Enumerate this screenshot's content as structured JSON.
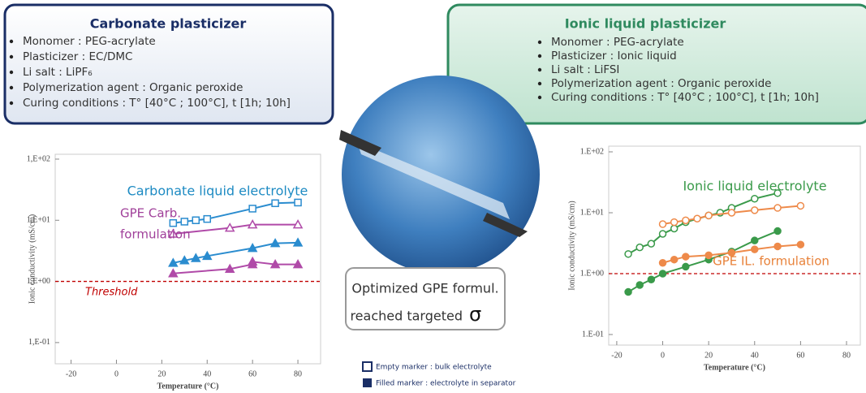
{
  "left_box": {
    "title": "Carbonate plasticizer",
    "bullets": [
      "Monomer : PEG-acrylate",
      "Plasticizer : EC/DMC",
      "Li salt : LiPF₆",
      "Polymerization agent : Organic peroxide",
      "Curing conditions : T° [40°C ; 100°C], t [1h; 10h]"
    ]
  },
  "right_box": {
    "title": "Ionic liquid plasticizer",
    "bullets": [
      "Monomer : PEG-acrylate",
      "Plasticizer : Ionic liquid",
      "Li salt : LiFSI",
      "Polymerization agent : Organic peroxide",
      "Curing conditions : T° [40°C ; 100°C], t [1h; 10h]"
    ]
  },
  "callout": {
    "lines": [
      "Optimized GPE formul.",
      "reached targeted",
      "σ"
    ]
  },
  "legend": {
    "empty": "Empty marker : bulk electrolyte",
    "filled": "Filled marker : electrolyte in separator"
  },
  "chart_data": [
    {
      "type": "line",
      "log_y": true,
      "xlabel": "Temperature (°C)",
      "ylabel": "Ionic conductivity (mS/cm)",
      "xlim": [
        -27,
        90
      ],
      "xticks": [
        -20,
        0,
        20,
        40,
        60,
        80
      ],
      "ylim": [
        0.045,
        120
      ],
      "yticks": [
        {
          "value": 0.1,
          "label": "1,E-01"
        },
        {
          "value": 1,
          "label": "1,E+00"
        },
        {
          "value": 10,
          "label": "1,E+01"
        },
        {
          "value": 100,
          "label": "1,E+02"
        }
      ],
      "threshold": {
        "value": 1,
        "label": "Threshold",
        "color": "#c00000"
      },
      "annotations": [
        {
          "text": "Carbonate liquid electrolyte",
          "color": "#1e8bc3"
        },
        {
          "text": "GPE  Carb.",
          "color": "#a0409a"
        },
        {
          "text": "formulation",
          "color": "#a0409a"
        }
      ],
      "series": [
        {
          "color": "#2a8ccf",
          "marker": "square",
          "filled": false,
          "x": [
            25,
            30,
            35,
            40,
            60,
            70,
            80
          ],
          "values": [
            9,
            9.5,
            10,
            10.5,
            15.5,
            19,
            19.5
          ]
        },
        {
          "color": "#b04aa8",
          "marker": "triangle",
          "filled": false,
          "x": [
            25,
            50,
            60,
            80
          ],
          "values": [
            6,
            7.5,
            8.5,
            8.5
          ]
        },
        {
          "color": "#2a8ccf",
          "marker": "triangle",
          "filled": true,
          "x": [
            25,
            30,
            35,
            40,
            60,
            70,
            80
          ],
          "values": [
            2,
            2.2,
            2.4,
            2.6,
            3.5,
            4.2,
            4.3
          ]
        },
        {
          "color": "#b04aa8",
          "marker": "triangle",
          "filled": true,
          "x": [
            25,
            50,
            60,
            60,
            70,
            80
          ],
          "values": [
            1.35,
            1.6,
            1.9,
            2.1,
            1.9,
            1.9
          ]
        }
      ]
    },
    {
      "type": "line",
      "log_y": true,
      "xlabel": "Temperature (°C)",
      "ylabel": "Ionic conductivity (mS/cm)",
      "xlim": [
        -23.5,
        86
      ],
      "xticks": [
        -20,
        0,
        20,
        40,
        60,
        80
      ],
      "ylim": [
        0.067,
        124
      ],
      "yticks": [
        {
          "value": 0.1,
          "label": "1.E-01"
        },
        {
          "value": 1,
          "label": "1.E+00"
        },
        {
          "value": 10,
          "label": "1.E+01"
        },
        {
          "value": 100,
          "label": "1.E+02"
        }
      ],
      "threshold": {
        "value": 1,
        "color": "#c00000"
      },
      "annotations": [
        {
          "text": "Ionic liquid electrolyte",
          "color": "#3a9a4a"
        },
        {
          "text": "GPE IL. formulation",
          "color": "#e8823a"
        }
      ],
      "series": [
        {
          "color": "#3a9a4a",
          "marker": "circle",
          "filled": false,
          "x": [
            -15,
            -10,
            -5,
            0,
            5,
            10,
            20,
            25,
            30,
            40,
            50
          ],
          "values": [
            2.1,
            2.7,
            3.1,
            4.5,
            5.5,
            7,
            9,
            10,
            12,
            17,
            21
          ]
        },
        {
          "color": "#ee8a4a",
          "marker": "circle",
          "filled": false,
          "x": [
            0,
            5,
            10,
            15,
            20,
            30,
            40,
            50,
            60
          ],
          "values": [
            6.5,
            7,
            7.5,
            8,
            9,
            10,
            11,
            12,
            13
          ]
        },
        {
          "color": "#3a9a4a",
          "marker": "circle",
          "filled": true,
          "x": [
            -15,
            -10,
            -5,
            0,
            10,
            20,
            30,
            40,
            50
          ],
          "values": [
            0.5,
            0.65,
            0.8,
            1.0,
            1.3,
            1.7,
            2.3,
            3.5,
            5
          ]
        },
        {
          "color": "#ee8a4a",
          "marker": "circle",
          "filled": true,
          "x": [
            0,
            5,
            10,
            20,
            30,
            40,
            50,
            60
          ],
          "values": [
            1.5,
            1.7,
            1.9,
            2.0,
            2.2,
            2.5,
            2.8,
            3.0
          ]
        }
      ]
    }
  ]
}
